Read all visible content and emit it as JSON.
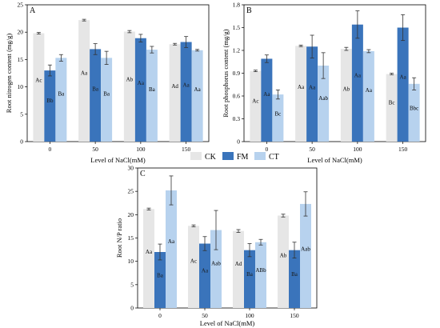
{
  "legend": {
    "items": [
      {
        "label": "CK",
        "color": "#e6e6e6"
      },
      {
        "label": "FM",
        "color": "#3a74bb"
      },
      {
        "label": "CT",
        "color": "#b7d2ee"
      }
    ]
  },
  "chart_data": [
    {
      "type": "bar",
      "panel": "A",
      "xlabel": "Level of NaCl(mM)",
      "ylabel": "Root nitrogen content (mg/g)",
      "ylim": [
        0,
        25
      ],
      "yticks": [
        0,
        5,
        10,
        15,
        20,
        25
      ],
      "categories": [
        "0",
        "50",
        "100",
        "150"
      ],
      "series": [
        {
          "name": "CK",
          "color": "#e6e6e6",
          "values": [
            19.8,
            22.2,
            20.1,
            17.8
          ],
          "errors": [
            0.15,
            0.15,
            0.2,
            0.15
          ],
          "labels": [
            "Ac",
            "Aa",
            "Ab",
            "Ad"
          ]
        },
        {
          "name": "FM",
          "color": "#3a74bb",
          "values": [
            13.0,
            16.9,
            18.9,
            18.2
          ],
          "errors": [
            1.0,
            1.0,
            0.7,
            1.0
          ],
          "labels": [
            "Bb",
            "Ba",
            "Aa",
            "Aa"
          ]
        },
        {
          "name": "CT",
          "color": "#b7d2ee",
          "values": [
            15.3,
            15.3,
            16.8,
            16.7
          ],
          "errors": [
            0.6,
            1.2,
            0.6,
            0.15
          ],
          "labels": [
            "Ba",
            "Ba",
            "Ba",
            "Aa"
          ]
        }
      ]
    },
    {
      "type": "bar",
      "panel": "B",
      "xlabel": "Level of NaCl(mM)",
      "ylabel": "Root phosphorus content (mg/g)",
      "ylim": [
        0,
        1.8
      ],
      "yticks": [
        0.0,
        0.3,
        0.6,
        0.9,
        1.2,
        1.5,
        1.8
      ],
      "categories": [
        "0",
        "50",
        "100",
        "150"
      ],
      "series": [
        {
          "name": "CK",
          "color": "#e6e6e6",
          "values": [
            0.93,
            1.26,
            1.22,
            0.89
          ],
          "errors": [
            0.01,
            0.01,
            0.02,
            0.01
          ],
          "labels": [
            "Ac",
            "Aa",
            "Ab",
            "Bc"
          ]
        },
        {
          "name": "FM",
          "color": "#3a74bb",
          "values": [
            1.09,
            1.25,
            1.54,
            1.5
          ],
          "errors": [
            0.05,
            0.15,
            0.18,
            0.17
          ],
          "labels": [
            "Aa",
            "Aa",
            "Aa",
            "Aa"
          ]
        },
        {
          "name": "CT",
          "color": "#b7d2ee",
          "values": [
            0.62,
            1.0,
            1.19,
            0.76
          ],
          "errors": [
            0.06,
            0.17,
            0.02,
            0.08
          ],
          "labels": [
            "Bc",
            "Aab",
            "Aa",
            "Bbc"
          ]
        }
      ]
    },
    {
      "type": "bar",
      "panel": "C",
      "xlabel": "Level of NaCl(mM)",
      "ylabel": "Root N/P ratio",
      "ylim": [
        0,
        30
      ],
      "yticks": [
        0,
        5,
        10,
        15,
        20,
        25,
        30
      ],
      "categories": [
        "0",
        "50",
        "100",
        "150"
      ],
      "series": [
        {
          "name": "CK",
          "color": "#e6e6e6",
          "values": [
            21.2,
            17.6,
            16.5,
            19.8
          ],
          "errors": [
            0.2,
            0.2,
            0.3,
            0.3
          ],
          "labels": [
            "Aa",
            "Ac",
            "Ad",
            "Ab"
          ]
        },
        {
          "name": "FM",
          "color": "#3a74bb",
          "values": [
            12.0,
            13.8,
            12.4,
            12.4
          ],
          "errors": [
            1.7,
            1.5,
            1.4,
            1.7
          ],
          "labels": [
            "Ba",
            "Aa",
            "Ba",
            "Ba"
          ]
        },
        {
          "name": "CT",
          "color": "#b7d2ee",
          "values": [
            25.2,
            16.7,
            14.1,
            22.3
          ],
          "errors": [
            3.1,
            4.2,
            0.6,
            2.6
          ],
          "labels": [
            "Aa",
            "Aab",
            "ABb",
            "Aab"
          ]
        }
      ]
    }
  ]
}
